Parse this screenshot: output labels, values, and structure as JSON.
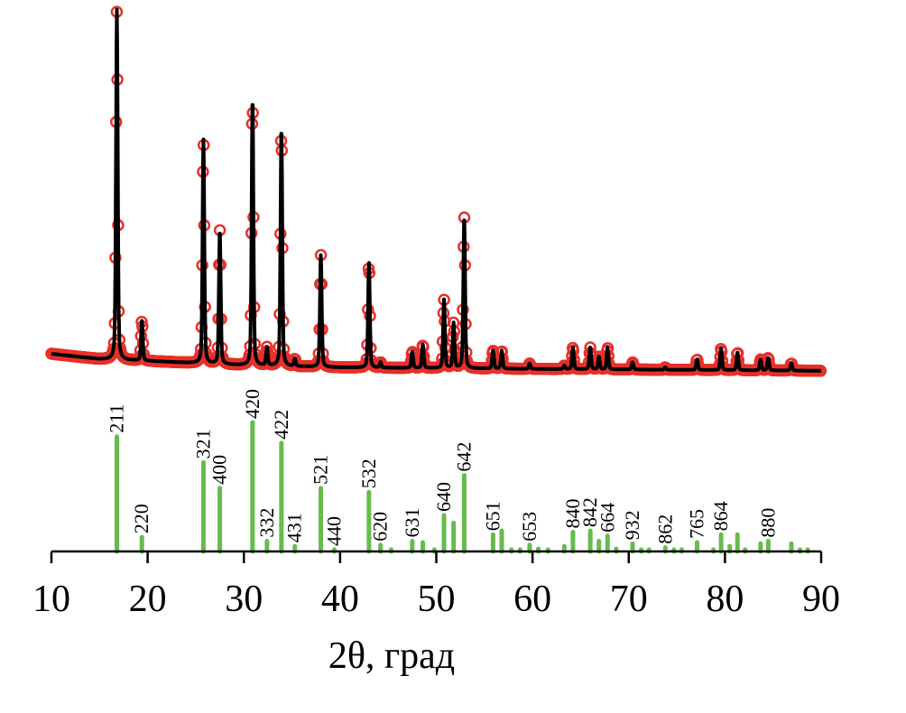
{
  "chart_data": {
    "type": "line",
    "xlabel": "2θ, град",
    "ylabel": "",
    "xlim": [
      10,
      90
    ],
    "xticks": [
      "10",
      "20",
      "30",
      "40",
      "50",
      "60",
      "70",
      "80",
      "90"
    ],
    "y_axis_shown": false,
    "grid": false,
    "colors": {
      "observed": "#e8302a",
      "calculated": "#000000",
      "reference": "#66bb4e",
      "axis": "#000000"
    },
    "observed_pattern": {
      "marker": "open-circle",
      "background": [
        [
          10,
          5
        ],
        [
          15,
          3.5
        ],
        [
          20,
          3
        ],
        [
          30,
          1.8
        ],
        [
          40,
          1.2
        ],
        [
          60,
          0.8
        ],
        [
          90,
          0.3
        ]
      ],
      "peaks": [
        [
          16.8,
          97
        ],
        [
          19.4,
          11
        ],
        [
          25.8,
          62
        ],
        [
          27.5,
          37
        ],
        [
          30.9,
          74
        ],
        [
          32.4,
          5
        ],
        [
          33.9,
          66
        ],
        [
          35.3,
          2
        ],
        [
          38.0,
          31
        ],
        [
          43.0,
          29
        ],
        [
          44.2,
          1.5
        ],
        [
          47.5,
          4.5
        ],
        [
          48.6,
          6.5
        ],
        [
          50.8,
          19
        ],
        [
          51.8,
          12.5
        ],
        [
          52.9,
          42
        ],
        [
          55.9,
          5
        ],
        [
          56.8,
          5
        ],
        [
          59.7,
          1.5
        ],
        [
          63.3,
          1
        ],
        [
          64.2,
          6
        ],
        [
          66.0,
          6
        ],
        [
          66.9,
          3.5
        ],
        [
          67.8,
          6
        ],
        [
          70.4,
          2
        ],
        [
          73.8,
          0.7
        ],
        [
          77.1,
          3
        ],
        [
          79.6,
          6
        ],
        [
          81.3,
          5
        ],
        [
          83.7,
          3
        ],
        [
          84.5,
          3.5
        ],
        [
          86.9,
          2
        ]
      ]
    },
    "reference_sticks": [
      {
        "x": 16.8,
        "intensity": 89,
        "hkl": "211"
      },
      {
        "x": 19.4,
        "intensity": 11,
        "hkl": "220"
      },
      {
        "x": 25.8,
        "intensity": 69,
        "hkl": "321"
      },
      {
        "x": 27.5,
        "intensity": 49,
        "hkl": "400"
      },
      {
        "x": 30.9,
        "intensity": 100,
        "hkl": "420"
      },
      {
        "x": 32.4,
        "intensity": 8,
        "hkl": "332"
      },
      {
        "x": 33.9,
        "intensity": 84,
        "hkl": "422"
      },
      {
        "x": 35.3,
        "intensity": 4,
        "hkl": "431"
      },
      {
        "x": 38.0,
        "intensity": 49,
        "hkl": "521"
      },
      {
        "x": 39.4,
        "intensity": 1,
        "hkl": "440"
      },
      {
        "x": 43.0,
        "intensity": 46,
        "hkl": "532"
      },
      {
        "x": 44.2,
        "intensity": 5,
        "hkl": "620"
      },
      {
        "x": 45.3,
        "intensity": 1,
        "hkl": ""
      },
      {
        "x": 47.5,
        "intensity": 8,
        "hkl": "631"
      },
      {
        "x": 48.6,
        "intensity": 7,
        "hkl": ""
      },
      {
        "x": 49.8,
        "intensity": 1,
        "hkl": ""
      },
      {
        "x": 50.8,
        "intensity": 28,
        "hkl": "640"
      },
      {
        "x": 51.8,
        "intensity": 22,
        "hkl": ""
      },
      {
        "x": 52.9,
        "intensity": 59,
        "hkl": "642"
      },
      {
        "x": 55.9,
        "intensity": 13,
        "hkl": "651"
      },
      {
        "x": 56.8,
        "intensity": 16,
        "hkl": ""
      },
      {
        "x": 57.8,
        "intensity": 1,
        "hkl": ""
      },
      {
        "x": 58.7,
        "intensity": 1,
        "hkl": ""
      },
      {
        "x": 59.7,
        "intensity": 5,
        "hkl": "653"
      },
      {
        "x": 60.6,
        "intensity": 2,
        "hkl": ""
      },
      {
        "x": 61.6,
        "intensity": 1,
        "hkl": ""
      },
      {
        "x": 63.3,
        "intensity": 4,
        "hkl": ""
      },
      {
        "x": 64.2,
        "intensity": 15,
        "hkl": "840"
      },
      {
        "x": 66.0,
        "intensity": 16,
        "hkl": "842"
      },
      {
        "x": 66.9,
        "intensity": 8,
        "hkl": ""
      },
      {
        "x": 67.8,
        "intensity": 12,
        "hkl": "664"
      },
      {
        "x": 68.7,
        "intensity": 2,
        "hkl": ""
      },
      {
        "x": 70.4,
        "intensity": 6,
        "hkl": "932"
      },
      {
        "x": 71.3,
        "intensity": 1,
        "hkl": ""
      },
      {
        "x": 72.1,
        "intensity": 1,
        "hkl": ""
      },
      {
        "x": 73.8,
        "intensity": 3,
        "hkl": "862"
      },
      {
        "x": 74.7,
        "intensity": 1,
        "hkl": ""
      },
      {
        "x": 75.5,
        "intensity": 1,
        "hkl": ""
      },
      {
        "x": 77.1,
        "intensity": 7,
        "hkl": "765"
      },
      {
        "x": 78.8,
        "intensity": 1,
        "hkl": ""
      },
      {
        "x": 79.6,
        "intensity": 13,
        "hkl": "864"
      },
      {
        "x": 80.5,
        "intensity": 4,
        "hkl": ""
      },
      {
        "x": 81.3,
        "intensity": 13,
        "hkl": ""
      },
      {
        "x": 82.1,
        "intensity": 1,
        "hkl": ""
      },
      {
        "x": 83.7,
        "intensity": 6,
        "hkl": ""
      },
      {
        "x": 84.5,
        "intensity": 8,
        "hkl": "880"
      },
      {
        "x": 86.9,
        "intensity": 6,
        "hkl": ""
      },
      {
        "x": 87.8,
        "intensity": 1,
        "hkl": ""
      },
      {
        "x": 88.6,
        "intensity": 1,
        "hkl": ""
      }
    ]
  }
}
